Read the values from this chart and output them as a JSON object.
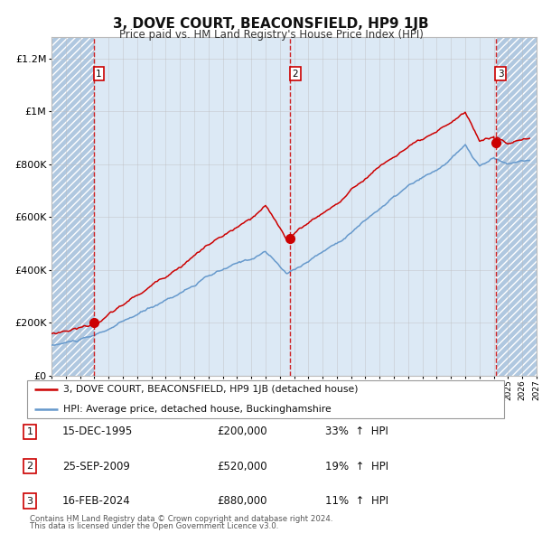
{
  "title": "3, DOVE COURT, BEACONSFIELD, HP9 1JB",
  "subtitle": "Price paid vs. HM Land Registry's House Price Index (HPI)",
  "sales": [
    {
      "num": 1,
      "date_label": "15-DEC-1995",
      "year": 1995.96,
      "price": 200000,
      "pct": "33%",
      "dir": "↑"
    },
    {
      "num": 2,
      "date_label": "25-SEP-2009",
      "year": 2009.73,
      "price": 520000,
      "pct": "19%",
      "dir": "↑"
    },
    {
      "num": 3,
      "date_label": "16-FEB-2024",
      "year": 2024.12,
      "price": 880000,
      "pct": "11%",
      "dir": "↑"
    }
  ],
  "y_ticks": [
    0,
    200000,
    400000,
    600000,
    800000,
    1000000,
    1200000
  ],
  "y_labels": [
    "£0",
    "£200K",
    "£400K",
    "£600K",
    "£800K",
    "£1M",
    "£1.2M"
  ],
  "x_min": 1993.0,
  "x_max": 2027.0,
  "ylim_min": 0,
  "ylim_max": 1280000,
  "legend_line1": "3, DOVE COURT, BEACONSFIELD, HP9 1JB (detached house)",
  "legend_line2": "HPI: Average price, detached house, Buckinghamshire",
  "footer1": "Contains HM Land Registry data © Crown copyright and database right 2024.",
  "footer2": "This data is licensed under the Open Government Licence v3.0.",
  "hpi_color": "#6699cc",
  "price_color": "#cc0000",
  "bg_color": "#dce9f5",
  "hatch_color": "#b0c8e0",
  "grid_color": "#bbbbbb"
}
